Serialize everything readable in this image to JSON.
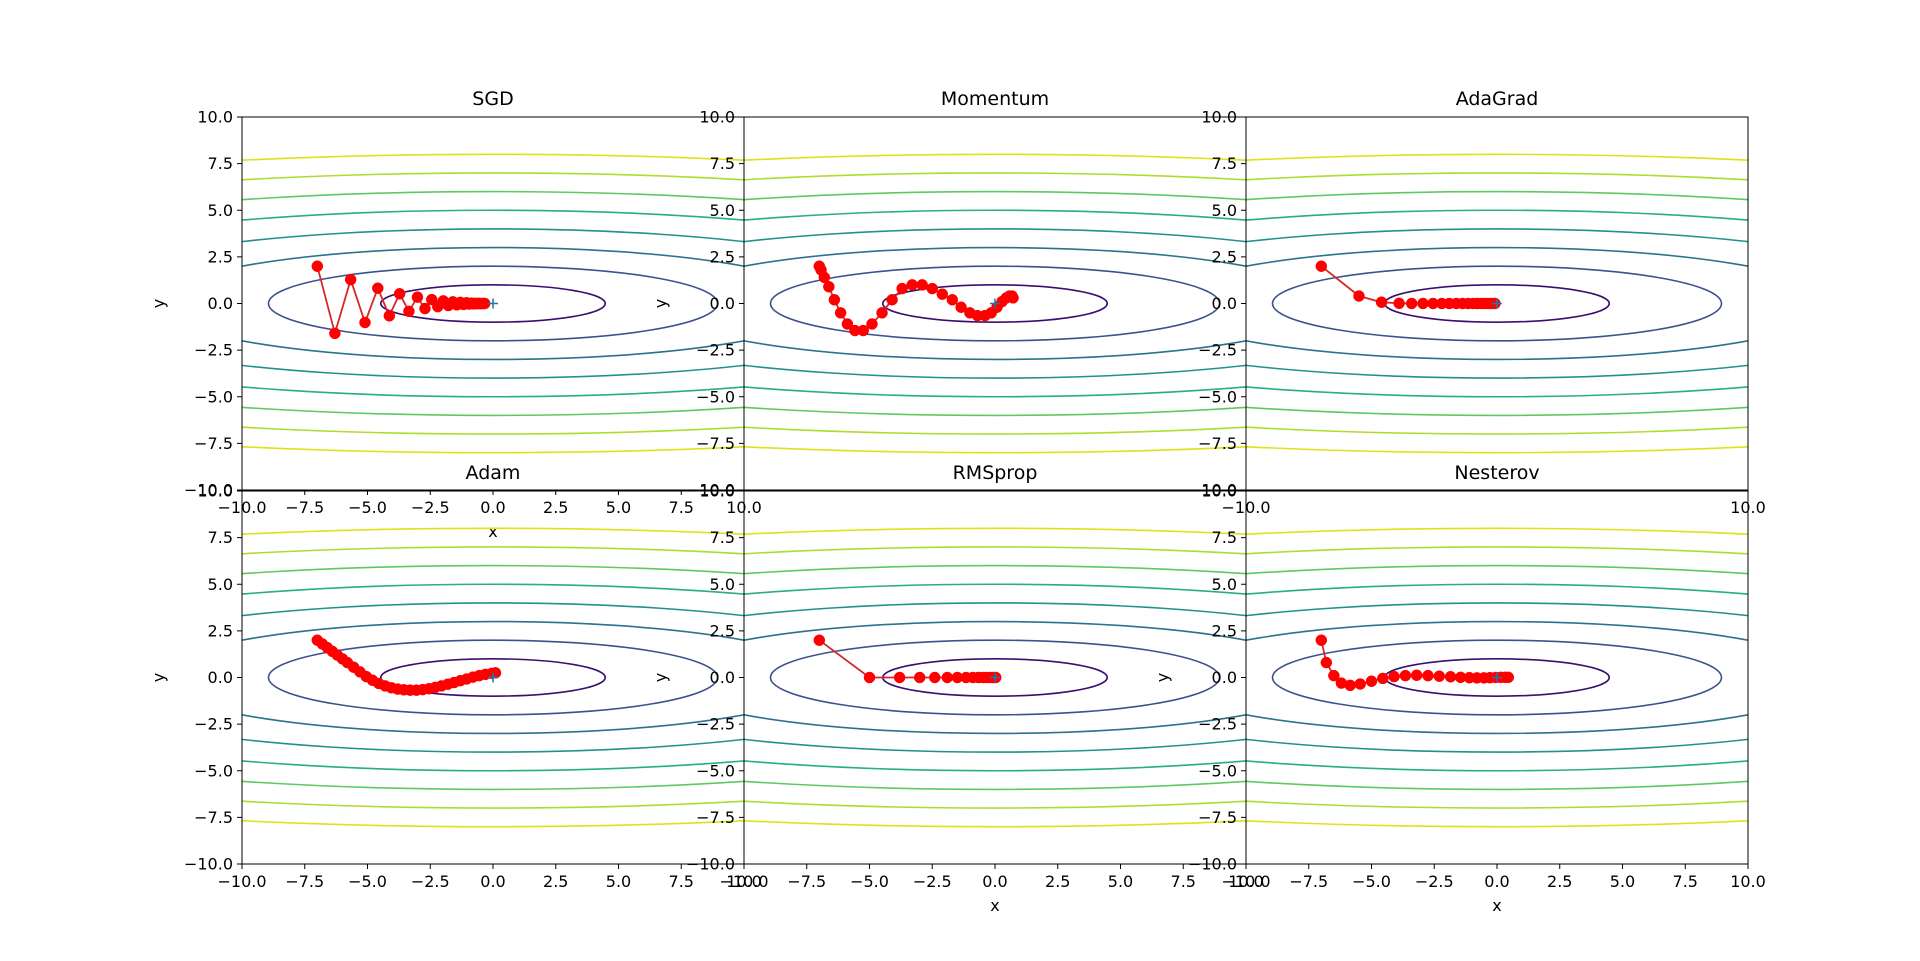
{
  "figure": {
    "background": "#ffffff",
    "path_color": "#ff0000",
    "line_color": "#d62728",
    "minimum_marker_color": "#1f77b4",
    "contour_colors": [
      "#3b0f70",
      "#3b528b",
      "#2c728e",
      "#21918c",
      "#28ae80",
      "#5ec962",
      "#addc30",
      "#dde318"
    ]
  },
  "chart_data": [
    {
      "type": "line",
      "title": "SGD",
      "xlabel": "x",
      "ylabel": "y",
      "xlim": [
        -10,
        10
      ],
      "ylim": [
        -10,
        10
      ],
      "xticks": [
        "−10.0",
        "−7.5",
        "−5.0",
        "−2.5",
        "0.0",
        "2.5",
        "5.0",
        "7.5",
        "10.0"
      ],
      "yticks": [
        "−10.0",
        "−7.5",
        "−5.0",
        "−2.5",
        "0.0",
        "2.5",
        "5.0",
        "7.5",
        "10.0"
      ],
      "function": "f(x, y) = x^2 / 20 + y^2",
      "contour_levels": [
        1,
        4,
        9,
        16,
        25,
        36,
        49,
        64
      ],
      "minimum": [
        0,
        0
      ],
      "x": [
        -7.0,
        -6.3,
        -5.67,
        -5.1,
        -4.59,
        -4.13,
        -3.72,
        -3.35,
        -3.01,
        -2.71,
        -2.44,
        -2.2,
        -1.98,
        -1.78,
        -1.6,
        -1.44,
        -1.3,
        -1.17,
        -1.05,
        -0.95,
        -0.85,
        -0.77,
        -0.69,
        -0.62,
        -0.56,
        -0.5,
        -0.45,
        -0.41,
        -0.37,
        -0.33
      ],
      "y": [
        2.0,
        -1.6,
        1.28,
        -1.02,
        0.82,
        -0.66,
        0.52,
        -0.42,
        0.34,
        -0.27,
        0.21,
        -0.17,
        0.14,
        -0.11,
        0.09,
        -0.07,
        0.06,
        -0.05,
        0.04,
        -0.03,
        0.02,
        -0.02,
        0.01,
        -0.01,
        0.01,
        -0.01,
        0.0,
        0.0,
        0.0,
        0.0
      ]
    },
    {
      "type": "line",
      "title": "Momentum",
      "xlabel": "",
      "ylabel": "y",
      "xlim": [
        -10,
        10
      ],
      "ylim": [
        -10,
        10
      ],
      "xticks": [],
      "yticks": [
        "−10.0",
        "−7.5",
        "−5.0",
        "−2.5",
        "0.0",
        "2.5",
        "5.0",
        "7.5",
        "10.0"
      ],
      "function": "f(x, y) = x^2 / 20 + y^2",
      "contour_levels": [
        1,
        4,
        9,
        16,
        25,
        36,
        49,
        64
      ],
      "minimum": [
        0,
        0
      ],
      "x": [
        -7.0,
        -6.93,
        -6.8,
        -6.62,
        -6.4,
        -6.15,
        -5.88,
        -5.58,
        -5.25,
        -4.9,
        -4.5,
        -4.1,
        -3.7,
        -3.3,
        -2.9,
        -2.5,
        -2.1,
        -1.7,
        -1.35,
        -1.0,
        -0.7,
        -0.4,
        -0.15,
        0.08,
        0.28,
        0.45,
        0.58,
        0.68,
        0.72
      ],
      "y": [
        2.0,
        1.8,
        1.4,
        0.9,
        0.2,
        -0.5,
        -1.1,
        -1.45,
        -1.45,
        -1.1,
        -0.5,
        0.2,
        0.8,
        1.0,
        1.0,
        0.8,
        0.5,
        0.2,
        -0.2,
        -0.5,
        -0.65,
        -0.65,
        -0.5,
        -0.2,
        0.1,
        0.3,
        0.4,
        0.4,
        0.3
      ]
    },
    {
      "type": "line",
      "title": "AdaGrad",
      "xlabel": "",
      "ylabel": "",
      "xlim": [
        -10,
        10
      ],
      "ylim": [
        -10,
        10
      ],
      "xticks": [
        "−10.0",
        "10.0"
      ],
      "yticks": [
        "−10.0",
        "−7.5",
        "−5.0",
        "−2.5",
        "0.0",
        "2.5",
        "5.0",
        "7.5",
        "10.0"
      ],
      "function": "f(x, y) = x^2 / 20 + y^2",
      "contour_levels": [
        1,
        4,
        9,
        16,
        25,
        36,
        49,
        64
      ],
      "minimum": [
        0,
        0
      ],
      "x": [
        -7.0,
        -5.5,
        -4.6,
        -3.9,
        -3.4,
        -2.95,
        -2.55,
        -2.2,
        -1.9,
        -1.62,
        -1.37,
        -1.15,
        -0.95,
        -0.78,
        -0.62,
        -0.48,
        -0.36,
        -0.25,
        -0.16,
        -0.08
      ],
      "y": [
        2.0,
        0.4,
        0.07,
        0.01,
        0.0,
        0.0,
        0.0,
        0.0,
        0.0,
        0.0,
        0.0,
        0.0,
        0.0,
        0.0,
        0.0,
        0.0,
        0.0,
        0.0,
        0.0,
        0.0
      ]
    },
    {
      "type": "line",
      "title": "Adam",
      "xlabel": "",
      "ylabel": "y",
      "xlim": [
        -10,
        10
      ],
      "ylim": [
        -10,
        10
      ],
      "xticks": [
        "−10.0",
        "−7.5",
        "−5.0",
        "−2.5",
        "0.0",
        "2.5",
        "5.0",
        "7.5",
        "10.0"
      ],
      "yticks": [
        "−10.0",
        "−7.5",
        "−5.0",
        "−2.5",
        "0.0",
        "2.5",
        "5.0",
        "7.5",
        "10.0"
      ],
      "function": "f(x, y) = x^2 / 20 + y^2",
      "contour_levels": [
        1,
        4,
        9,
        16,
        25,
        36,
        49,
        64
      ],
      "minimum": [
        0,
        0
      ],
      "x": [
        -7.0,
        -6.8,
        -6.6,
        -6.4,
        -6.2,
        -6.0,
        -5.8,
        -5.55,
        -5.3,
        -5.05,
        -4.8,
        -4.55,
        -4.3,
        -4.05,
        -3.8,
        -3.55,
        -3.3,
        -3.05,
        -2.8,
        -2.55,
        -2.3,
        -2.05,
        -1.8,
        -1.55,
        -1.3,
        -1.05,
        -0.8,
        -0.55,
        -0.3,
        -0.05,
        0.1
      ],
      "y": [
        2.0,
        1.8,
        1.6,
        1.4,
        1.2,
        1.0,
        0.8,
        0.55,
        0.3,
        0.05,
        -0.15,
        -0.32,
        -0.45,
        -0.55,
        -0.62,
        -0.66,
        -0.68,
        -0.68,
        -0.65,
        -0.6,
        -0.53,
        -0.45,
        -0.36,
        -0.27,
        -0.17,
        -0.08,
        0.02,
        0.1,
        0.17,
        0.22,
        0.25
      ]
    },
    {
      "type": "line",
      "title": "RMSprop",
      "xlabel": "x",
      "ylabel": "y",
      "xlim": [
        -10,
        10
      ],
      "ylim": [
        -10,
        10
      ],
      "xticks": [
        "−10.0",
        "−7.5",
        "−5.0",
        "−2.5",
        "0.0",
        "2.5",
        "5.0",
        "7.5",
        "10.0"
      ],
      "yticks": [
        "−10.0",
        "−7.5",
        "−5.0",
        "−2.5",
        "0.0",
        "2.5",
        "5.0",
        "7.5",
        "10.0"
      ],
      "function": "f(x, y) = x^2 / 20 + y^2",
      "contour_levels": [
        1,
        4,
        9,
        16,
        25,
        36,
        49,
        64
      ],
      "minimum": [
        0,
        0
      ],
      "x": [
        -7.0,
        -5.0,
        -3.8,
        -3.0,
        -2.4,
        -1.9,
        -1.5,
        -1.15,
        -0.88,
        -0.66,
        -0.48,
        -0.33,
        -0.2,
        -0.1,
        -0.02,
        0.03
      ],
      "y": [
        2.0,
        0.0,
        0.0,
        0.0,
        0.0,
        0.0,
        0.0,
        0.0,
        0.0,
        0.0,
        0.0,
        0.0,
        0.0,
        0.0,
        0.0,
        0.0
      ]
    },
    {
      "type": "line",
      "title": "Nesterov",
      "xlabel": "x",
      "ylabel": "y",
      "xlim": [
        -10,
        10
      ],
      "ylim": [
        -10,
        10
      ],
      "xticks": [
        "−10.0",
        "−7.5",
        "−5.0",
        "−2.5",
        "0.0",
        "2.5",
        "5.0",
        "7.5",
        "10.0"
      ],
      "yticks": [
        "−10.0",
        "−7.5",
        "−5.0",
        "−2.5",
        "0.0",
        "2.5",
        "5.0",
        "7.5",
        "10.0"
      ],
      "function": "f(x, y) = x^2 / 20 + y^2",
      "contour_levels": [
        1,
        4,
        9,
        16,
        25,
        36,
        49,
        64
      ],
      "minimum": [
        0,
        0
      ],
      "x": [
        -7.0,
        -6.8,
        -6.5,
        -6.2,
        -5.85,
        -5.45,
        -5.0,
        -4.55,
        -4.1,
        -3.65,
        -3.2,
        -2.75,
        -2.3,
        -1.85,
        -1.45,
        -1.1,
        -0.8,
        -0.52,
        -0.28,
        -0.05,
        0.15,
        0.32,
        0.45
      ],
      "y": [
        2.0,
        0.8,
        0.1,
        -0.3,
        -0.42,
        -0.35,
        -0.2,
        -0.05,
        0.05,
        0.1,
        0.12,
        0.1,
        0.07,
        0.04,
        0.01,
        -0.01,
        -0.02,
        -0.02,
        -0.01,
        0.0,
        0.01,
        0.01,
        0.01
      ]
    }
  ]
}
